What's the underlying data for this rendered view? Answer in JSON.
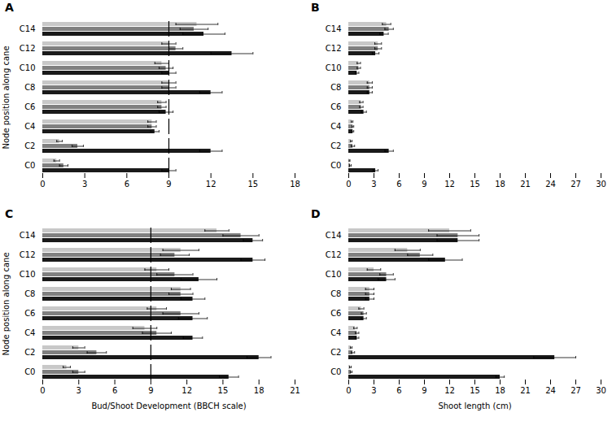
{
  "chart_data": [
    {
      "type": "bar",
      "orientation": "horizontal",
      "title": "A",
      "ylabel": "Node position along cane",
      "categories": [
        "C0",
        "C2",
        "C4",
        "C6",
        "C8",
        "C10",
        "C12",
        "C14"
      ],
      "series": [
        {
          "color": "#c8c8c8",
          "values": [
            1.0,
            1.2,
            7.8,
            8.5,
            9.0,
            8.5,
            9.0,
            11.0
          ],
          "errors": [
            0.2,
            0.2,
            0.3,
            0.3,
            0.5,
            0.5,
            0.5,
            1.5
          ]
        },
        {
          "color": "#808080",
          "values": [
            1.5,
            2.5,
            7.8,
            8.5,
            9.0,
            8.8,
            9.5,
            10.8
          ],
          "errors": [
            0.3,
            0.4,
            0.3,
            0.3,
            0.5,
            0.5,
            0.5,
            1.0
          ]
        },
        {
          "color": "#1a1a1a",
          "values": [
            9.0,
            12.0,
            8.0,
            8.8,
            12.0,
            9.0,
            13.5,
            11.5
          ],
          "errors": [
            0.5,
            0.8,
            0.3,
            0.5,
            0.8,
            0.5,
            1.5,
            1.5
          ]
        }
      ],
      "xlim": [
        0,
        18
      ],
      "xticks": [
        0,
        3,
        6,
        9,
        12,
        15,
        18
      ],
      "vline": 9
    },
    {
      "type": "bar",
      "orientation": "horizontal",
      "title": "B",
      "categories": [
        "C0",
        "C2",
        "C4",
        "C6",
        "C8",
        "C10",
        "C12",
        "C14"
      ],
      "series": [
        {
          "color": "#c8c8c8",
          "values": [
            0.1,
            0.3,
            0.4,
            1.5,
            2.5,
            1.2,
            3.5,
            4.5
          ],
          "errors": [
            0.05,
            0.1,
            0.1,
            0.2,
            0.3,
            0.2,
            0.4,
            0.5
          ]
        },
        {
          "color": "#808080",
          "values": [
            0.2,
            0.5,
            0.5,
            1.5,
            2.5,
            1.2,
            3.5,
            4.8
          ],
          "errors": [
            0.1,
            0.2,
            0.1,
            0.2,
            0.3,
            0.2,
            0.4,
            0.5
          ]
        },
        {
          "color": "#1a1a1a",
          "values": [
            3.2,
            4.8,
            0.5,
            1.8,
            2.5,
            1.0,
            3.2,
            4.2
          ],
          "errors": [
            0.3,
            0.5,
            0.1,
            0.3,
            0.3,
            0.2,
            0.4,
            0.5
          ]
        }
      ],
      "xlim": [
        0,
        30
      ],
      "xticks": [
        0,
        3,
        6,
        9,
        12,
        15,
        18,
        21,
        24,
        27,
        30
      ]
    },
    {
      "type": "bar",
      "orientation": "horizontal",
      "title": "C",
      "ylabel": "Node position along cane",
      "xlabel": "Bud/Shoot Development (BBCH scale)",
      "categories": [
        "C0",
        "C2",
        "C4",
        "C6",
        "C8",
        "C10",
        "C12",
        "C14"
      ],
      "series": [
        {
          "color": "#c8c8c8",
          "values": [
            2.0,
            3.0,
            8.5,
            9.5,
            11.5,
            9.5,
            11.5,
            14.5
          ],
          "errors": [
            0.3,
            0.5,
            1.0,
            0.8,
            0.8,
            1.0,
            1.5,
            1.0
          ]
        },
        {
          "color": "#808080",
          "values": [
            3.0,
            4.5,
            9.5,
            11.5,
            11.5,
            11.0,
            11.0,
            16.5
          ],
          "errors": [
            0.5,
            0.8,
            1.2,
            1.5,
            1.0,
            1.5,
            1.2,
            1.5
          ]
        },
        {
          "color": "#1a1a1a",
          "values": [
            15.5,
            18.0,
            12.5,
            12.5,
            12.5,
            13.0,
            17.5,
            17.5
          ],
          "errors": [
            0.8,
            1.0,
            0.8,
            1.2,
            1.0,
            1.5,
            1.0,
            0.8
          ]
        }
      ],
      "xlim": [
        0,
        21
      ],
      "xticks": [
        0,
        3,
        6,
        9,
        12,
        15,
        18,
        21
      ],
      "vline": 9
    },
    {
      "type": "bar",
      "orientation": "horizontal",
      "title": "D",
      "xlabel": "Shoot length (cm)",
      "categories": [
        "C0",
        "C2",
        "C4",
        "C6",
        "C8",
        "C10",
        "C12",
        "C14"
      ],
      "series": [
        {
          "color": "#c8c8c8",
          "values": [
            0.2,
            0.3,
            0.8,
            1.5,
            2.5,
            3.0,
            7.0,
            12.0
          ],
          "errors": [
            0.1,
            0.1,
            0.2,
            0.3,
            0.5,
            0.8,
            1.5,
            2.5
          ]
        },
        {
          "color": "#808080",
          "values": [
            0.3,
            0.5,
            1.0,
            1.8,
            2.5,
            4.5,
            8.5,
            13.0
          ],
          "errors": [
            0.1,
            0.2,
            0.2,
            0.3,
            0.5,
            0.8,
            1.5,
            2.5
          ]
        },
        {
          "color": "#1a1a1a",
          "values": [
            18.0,
            24.5,
            1.0,
            1.8,
            2.5,
            4.5,
            11.5,
            13.0
          ],
          "errors": [
            0.5,
            2.5,
            0.2,
            0.3,
            0.5,
            1.0,
            2.0,
            2.5
          ]
        }
      ],
      "xlim": [
        0,
        30
      ],
      "xticks": [
        0,
        3,
        6,
        9,
        12,
        15,
        18,
        21,
        24,
        27,
        30
      ]
    }
  ]
}
